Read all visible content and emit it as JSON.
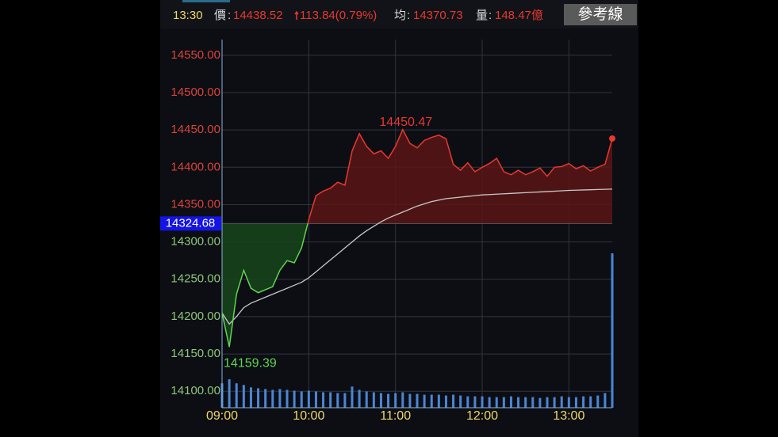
{
  "header": {
    "change": "113.84(0.79%)",
    "volume_total": "148.47億",
    "button": "參考線"
  },
  "chart_data": {
    "type": "line",
    "x": [
      "09:00",
      "09:05",
      "09:10",
      "09:15",
      "09:20",
      "09:25",
      "09:30",
      "09:35",
      "09:40",
      "09:45",
      "09:50",
      "09:55",
      "10:00",
      "10:05",
      "10:10",
      "10:15",
      "10:20",
      "10:25",
      "10:30",
      "10:35",
      "10:40",
      "10:45",
      "10:50",
      "10:55",
      "11:00",
      "11:05",
      "11:10",
      "11:15",
      "11:20",
      "11:25",
      "11:30",
      "11:35",
      "11:40",
      "11:45",
      "11:50",
      "11:55",
      "12:00",
      "12:05",
      "12:10",
      "12:15",
      "12:20",
      "12:25",
      "12:30",
      "12:35",
      "12:40",
      "12:45",
      "12:50",
      "12:55",
      "13:00",
      "13:05",
      "13:10",
      "13:15",
      "13:20",
      "13:25",
      "13:30"
    ],
    "series": [
      {
        "name": "價",
        "color": "#e8382f",
        "color_below": "#5fd650",
        "values": [
          14205,
          14159.39,
          14230,
          14262,
          14238,
          14232,
          14236,
          14240,
          14262,
          14275,
          14272,
          14292,
          14330,
          14362,
          14368,
          14372,
          14380,
          14376,
          14422,
          14445,
          14428,
          14418,
          14422,
          14412,
          14428,
          14450.47,
          14432,
          14426,
          14436,
          14440,
          14443,
          14438,
          14404,
          14396,
          14406,
          14394,
          14400,
          14405,
          14412,
          14394,
          14390,
          14396,
          14390,
          14394,
          14399,
          14388,
          14400,
          14401,
          14405,
          14398,
          14402,
          14395,
          14400,
          14404,
          14438.52
        ]
      },
      {
        "name": "均",
        "color": "#c8c8c8",
        "values": [
          14205,
          14190,
          14200,
          14212,
          14218,
          14222,
          14226,
          14230,
          14234,
          14238,
          14242,
          14246,
          14252,
          14260,
          14268,
          14276,
          14284,
          14292,
          14300,
          14308,
          14315,
          14321,
          14327,
          14332,
          14336,
          14340,
          14344,
          14348,
          14351,
          14354,
          14356,
          14358,
          14359,
          14360,
          14361,
          14362,
          14363,
          14363.5,
          14364,
          14364.5,
          14365,
          14365.5,
          14366,
          14366.5,
          14367,
          14367.5,
          14368,
          14368.5,
          14369,
          14369.3,
          14369.6,
          14369.9,
          14370.2,
          14370.5,
          14370.73
        ]
      },
      {
        "name": "量",
        "color": "#4a86d8",
        "axis": "volume",
        "values": [
          3,
          3.5,
          3,
          2.8,
          2.5,
          2.4,
          2.3,
          2.2,
          2.3,
          2.2,
          2.1,
          2,
          2.1,
          2.0,
          1.9,
          1.9,
          1.8,
          1.8,
          2.6,
          2.2,
          2,
          1.9,
          1.8,
          1.7,
          1.8,
          1.9,
          1.7,
          1.7,
          1.6,
          1.6,
          1.6,
          1.5,
          1.6,
          1.5,
          1.4,
          1.4,
          1.4,
          1.3,
          1.3,
          1.3,
          1.4,
          1.3,
          1.3,
          1.3,
          1.2,
          1.3,
          1.3,
          1.4,
          1.3,
          1.3,
          1.4,
          1.4,
          1.5,
          1.8,
          19
        ]
      }
    ],
    "reference": {
      "value": 14324.68,
      "label": "14324.68"
    },
    "annotations": [
      {
        "series": 0,
        "index": 25
      },
      {
        "series": 0,
        "index": 1
      }
    ],
    "xlim": [
      "09:00",
      "13:30"
    ],
    "xticks": [
      "09:00",
      "10:00",
      "11:00",
      "12:00",
      "13:00"
    ],
    "ylim": [
      14078,
      14571
    ],
    "yticks": [
      {
        "value": 14100,
        "label": "14100.00"
      },
      {
        "value": 14150,
        "label": "14150.00"
      },
      {
        "value": 14200,
        "label": "14200.00"
      },
      {
        "value": 14250,
        "label": "14250.00"
      },
      {
        "value": 14300,
        "label": "14300.00"
      },
      {
        "value": 14350,
        "label": "14350.00"
      },
      {
        "value": 14400,
        "label": "14400.00"
      },
      {
        "value": 14450,
        "label": "14450.00"
      },
      {
        "value": 14500,
        "label": "14500.00"
      },
      {
        "value": 14550,
        "label": "14550.00"
      }
    ],
    "grid": true
  }
}
